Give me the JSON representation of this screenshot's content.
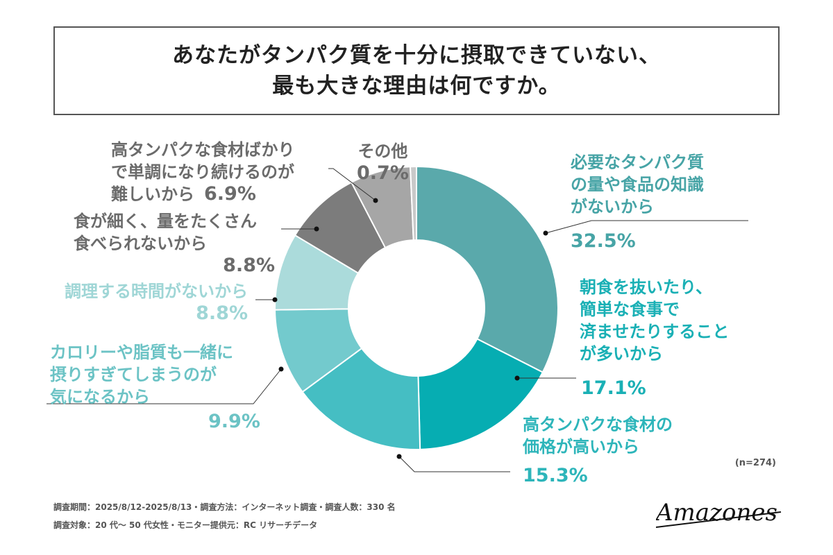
{
  "title": {
    "line1": "あなたがタンパク質を十分に摂取できていない、",
    "line2": "最も大きな理由は何ですか。"
  },
  "chart_data": {
    "type": "donut",
    "title": "あなたがタンパク質を十分に摂取できていない、最も大きな理由は何ですか。",
    "unit": "%",
    "sample_size": "n=274",
    "slices": [
      {
        "label": "必要なタンパク質の量や食品の知識がないから",
        "value": 32.5,
        "color": "#5aa9ab"
      },
      {
        "label": "朝食を抜いたり、簡単な食事で済ませたりすることが多いから",
        "value": 17.1,
        "color": "#06adb2"
      },
      {
        "label": "高タンパクな食材の価格が高いから",
        "value": 15.3,
        "color": "#45bec3"
      },
      {
        "label": "カロリーや脂質も一緒に摂りすぎてしまうのが気になるから",
        "value": 9.9,
        "color": "#73cacd"
      },
      {
        "label": "調理する時間がないから",
        "value": 8.8,
        "color": "#abdbdb"
      },
      {
        "label": "食が細く、量をたくさん食べられないから",
        "value": 8.8,
        "color": "#7c7c7c"
      },
      {
        "label": "高タンパクな食材ばかりで単調になり続けるのが難しいから",
        "value": 6.9,
        "color": "#a6a6a6"
      },
      {
        "label": "その他",
        "value": 0.7,
        "color": "#c9c9c9"
      }
    ]
  },
  "labels": {
    "s1": {
      "lines": [
        "必要なタンパク質",
        "の量や食品の知識",
        "がないから"
      ],
      "value": "32.5%"
    },
    "s2": {
      "lines": [
        "朝食を抜いたり、",
        "簡単な食事で",
        "済ませたりすること",
        "が多いから"
      ],
      "value": "17.1%"
    },
    "s3": {
      "lines": [
        "高タンパクな食材の",
        "価格が高いから"
      ],
      "value": "15.3%"
    },
    "s4": {
      "lines": [
        "カロリーや脂質も一緒に",
        "摂りすぎてしまうのが",
        "気になるから"
      ],
      "value": "9.9%"
    },
    "s5": {
      "lines": [
        "調理する時間がないから"
      ],
      "value": "8.8%"
    },
    "s6": {
      "lines": [
        "食が細く、量をたくさん",
        "食べられないから"
      ],
      "value": "8.8%"
    },
    "s7": {
      "lines": [
        "高タンパクな食材ばかり",
        "で単調になり続けるのが",
        "難しいから"
      ],
      "value": "6.9%"
    },
    "s8": {
      "lines": [
        "その他"
      ],
      "value": "0.7%"
    }
  },
  "sample_note": "(n=274)",
  "footer": {
    "line1": "調査期間：2025/8/12-2025/8/13・調査方法：インターネット調査・調査人数：330 名",
    "line2": "調査対象：20 代〜 50 代女性・モニター提供元：RC リサーチデータ"
  },
  "logo": {
    "text": "Amazones"
  }
}
